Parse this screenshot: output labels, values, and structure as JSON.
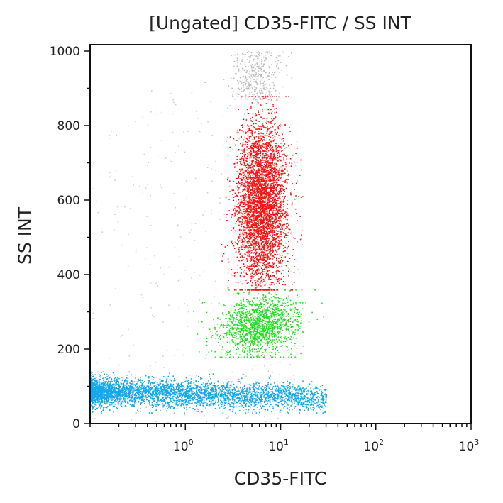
{
  "chart_data": {
    "type": "scatter",
    "title": "[Ungated] CD35-FITC / SS INT",
    "xlabel": "CD35-FITC",
    "ylabel": "SS INT",
    "x_scale": "log",
    "xlim": [
      0.1,
      1000
    ],
    "ylim": [
      0,
      1000
    ],
    "x_ticks": [
      {
        "base": "10",
        "exp": "0"
      },
      {
        "base": "10",
        "exp": "1"
      },
      {
        "base": "10",
        "exp": "2"
      },
      {
        "base": "10",
        "exp": "3"
      }
    ],
    "y_ticks": [
      "0",
      "200",
      "400",
      "600",
      "800",
      "1000"
    ],
    "grid": false,
    "populations": [
      {
        "color": "#ff1010",
        "x_center": 6.3,
        "x_log_sd": 0.13,
        "y_center": 590,
        "y_sd": 110,
        "y_range": [
          360,
          880
        ],
        "count": 4000
      },
      {
        "color": "#22dd22",
        "x_center": 6.0,
        "x_log_sd": 0.2,
        "y_center": 265,
        "y_sd": 40,
        "y_range": [
          180,
          360
        ],
        "count": 1500
      },
      {
        "color": "#12a8ec",
        "x_range": [
          0.1,
          30
        ],
        "y_center": 80,
        "y_sd": 18,
        "y_range": [
          30,
          140
        ],
        "count": 4000
      },
      {
        "color": "#bbbbbb",
        "x_center": 5.6,
        "x_log_sd": 0.13,
        "y_range": [
          870,
          1000
        ],
        "count": 350
      }
    ]
  }
}
